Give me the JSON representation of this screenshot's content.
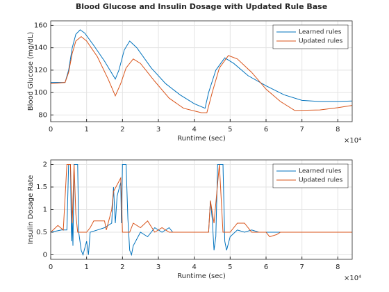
{
  "chart_data": [
    {
      "type": "line",
      "title": "Blood Glucose and Insulin Dosage with Updated Rule Base",
      "xlabel": "Runtime (sec)",
      "ylabel": "Blood Glucose (mg/dL)",
      "x_scale_label": "×10⁴",
      "xlim": [
        0,
        8.4
      ],
      "xticks": [
        0,
        1,
        2,
        3,
        4,
        5,
        6,
        7,
        8
      ],
      "ylim": [
        74,
        164
      ],
      "yticks": [
        80,
        100,
        120,
        140,
        160
      ],
      "grid": true,
      "legend": "northeast",
      "series": [
        {
          "name": "Learned rules",
          "color": "#0072bd",
          "x": [
            0,
            0.4,
            0.5,
            0.6,
            0.7,
            0.82,
            0.95,
            1.2,
            1.5,
            1.8,
            1.9,
            2.05,
            2.2,
            2.4,
            2.8,
            3.2,
            3.6,
            4.0,
            4.3,
            4.4,
            4.6,
            4.85,
            5.1,
            5.5,
            6.0,
            6.5,
            7.0,
            7.5,
            8.0,
            8.4
          ],
          "values": [
            109,
            109,
            120,
            140,
            152,
            156,
            153,
            142,
            128,
            112,
            120,
            138,
            146,
            140,
            122,
            108,
            98,
            90,
            86,
            100,
            120,
            131,
            126,
            115,
            106,
            98,
            93,
            92,
            92,
            92.5
          ]
        },
        {
          "name": "Updated rules",
          "color": "#d95319",
          "x": [
            0,
            0.4,
            0.5,
            0.6,
            0.7,
            0.85,
            1.0,
            1.3,
            1.6,
            1.8,
            1.95,
            2.1,
            2.3,
            2.5,
            2.9,
            3.3,
            3.7,
            4.2,
            4.35,
            4.5,
            4.7,
            4.95,
            5.2,
            5.6,
            6.0,
            6.4,
            6.8,
            7.5,
            8.0,
            8.4
          ],
          "values": [
            108,
            109,
            118,
            135,
            146,
            150,
            146,
            132,
            112,
            97,
            108,
            122,
            130,
            126,
            110,
            95,
            86,
            82,
            82,
            100,
            122,
            133,
            130,
            118,
            103,
            92,
            84,
            84.5,
            86.5,
            88.5
          ]
        }
      ]
    },
    {
      "type": "line",
      "xlabel": "Runtime (sec)",
      "ylabel": "Insulin Dosage Rate",
      "x_scale_label": "×10⁴",
      "xlim": [
        0,
        8.4
      ],
      "xticks": [
        0,
        1,
        2,
        3,
        4,
        5,
        6,
        7,
        8
      ],
      "ylim": [
        -0.1,
        2.1
      ],
      "yticks": [
        0,
        0.5,
        1,
        1.5,
        2
      ],
      "grid": true,
      "legend": "northeast",
      "series": [
        {
          "name": "Learned rules",
          "color": "#0072bd",
          "x": [
            0,
            0.3,
            0.45,
            0.5,
            0.55,
            0.58,
            0.6,
            0.62,
            0.65,
            0.75,
            0.78,
            0.85,
            0.9,
            1.0,
            1.05,
            1.1,
            1.3,
            1.5,
            1.7,
            1.75,
            1.8,
            1.85,
            1.95,
            1.97,
            2.0,
            2.1,
            2.15,
            2.2,
            2.25,
            2.3,
            2.5,
            2.7,
            2.9,
            3.1,
            3.3,
            3.4,
            4.4,
            4.45,
            4.5,
            4.55,
            4.6,
            4.65,
            4.8,
            4.85,
            4.9,
            5.0,
            5.2,
            5.4,
            5.6,
            5.8,
            8.4
          ],
          "values": [
            0.5,
            0.55,
            0.55,
            2,
            2,
            0.3,
            0.8,
            0.2,
            2,
            2,
            0.5,
            0.1,
            0,
            0.3,
            0,
            0.5,
            0.55,
            0.6,
            0.7,
            1.5,
            0.7,
            1.3,
            1.6,
            0.7,
            2,
            2,
            0.8,
            0.1,
            0,
            0.2,
            0.5,
            0.4,
            0.6,
            0.5,
            0.6,
            0.5,
            0.5,
            1.2,
            0.8,
            0.1,
            0.4,
            2,
            2,
            0.3,
            0.1,
            0.4,
            0.55,
            0.5,
            0.55,
            0.5,
            0.5
          ]
        },
        {
          "name": "Updated rules",
          "color": "#d95319",
          "x": [
            0,
            0.2,
            0.35,
            0.45,
            0.55,
            0.6,
            0.65,
            0.7,
            0.75,
            1.0,
            1.1,
            1.2,
            1.5,
            1.55,
            1.7,
            1.75,
            1.95,
            2.0,
            2.2,
            2.3,
            2.5,
            2.7,
            2.9,
            3.1,
            3.3,
            3.4,
            4.4,
            4.45,
            4.55,
            4.7,
            4.8,
            5.0,
            5.2,
            5.4,
            5.6,
            6.0,
            6.1,
            6.3,
            6.4,
            8.4
          ],
          "values": [
            0.5,
            0.65,
            0.55,
            2,
            2,
            0.7,
            2,
            0.9,
            0.5,
            0.5,
            0.6,
            0.75,
            0.75,
            0.55,
            1.0,
            1.4,
            1.7,
            0.5,
            0.5,
            0.7,
            0.6,
            0.75,
            0.5,
            0.6,
            0.5,
            0.5,
            0.5,
            1.2,
            0.7,
            2,
            0.5,
            0.5,
            0.7,
            0.7,
            0.5,
            0.5,
            0.4,
            0.45,
            0.5,
            0.5
          ]
        }
      ]
    }
  ]
}
